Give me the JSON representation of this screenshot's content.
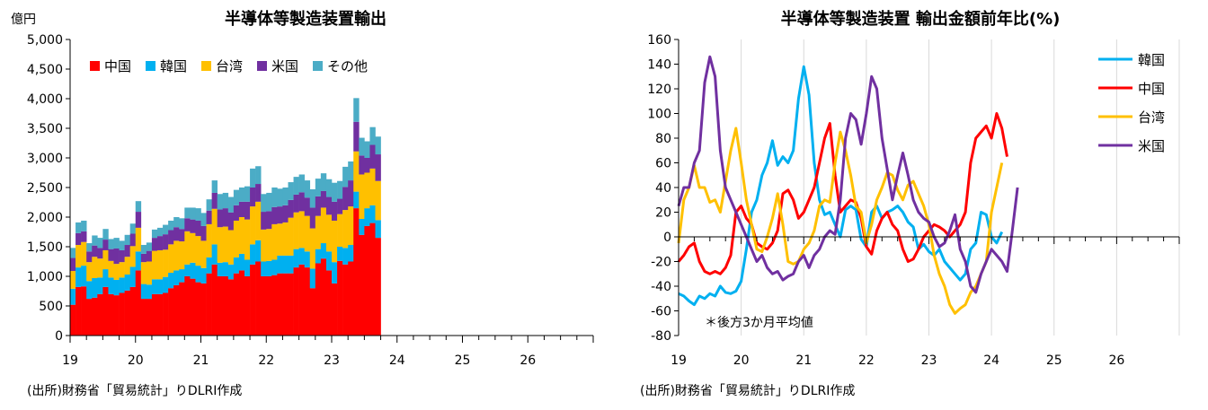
{
  "chart_data": [
    {
      "type": "bar",
      "stacked": true,
      "title": "半導体等製造装置輸出",
      "unit_label": "億円",
      "x_tick_labels": [
        "19",
        "20",
        "21",
        "22",
        "23",
        "24",
        "25",
        "26"
      ],
      "y_ticks": [
        0,
        500,
        1000,
        1500,
        2000,
        2500,
        3000,
        3500,
        4000,
        4500,
        5000
      ],
      "y_tick_labels": [
        "0",
        "500",
        "1,000",
        "1,500",
        "2,000",
        "2,500",
        "3,000",
        "3,500",
        "4,000",
        "4,500",
        "5,000"
      ],
      "ylim": [
        0,
        5000
      ],
      "legend_position": "top-left",
      "source": "(出所)財務省「貿易統計」りDLRI作成",
      "series": [
        {
          "name": "中国",
          "color": "#ff0000",
          "values": [
            520,
            820,
            830,
            620,
            640,
            700,
            820,
            700,
            680,
            720,
            760,
            820,
            1100,
            620,
            620,
            700,
            700,
            720,
            800,
            850,
            900,
            1000,
            960,
            900,
            880,
            1050,
            1200,
            1000,
            1000,
            950,
            1050,
            1100,
            1000,
            1200,
            1250,
            1000,
            1000,
            1020,
            1050,
            1050,
            1050,
            1150,
            1200,
            1150,
            800,
            1220,
            1300,
            1100,
            880,
            1260,
            1200,
            1250,
            2150,
            1700,
            1850,
            1900,
            1650
          ]
        },
        {
          "name": "韓国",
          "color": "#00b0f0",
          "values": [
            270,
            330,
            350,
            300,
            330,
            280,
            300,
            280,
            260,
            260,
            270,
            340,
            320,
            250,
            240,
            250,
            250,
            270,
            260,
            250,
            220,
            200,
            270,
            280,
            260,
            270,
            340,
            230,
            240,
            250,
            270,
            280,
            280,
            340,
            360,
            250,
            260,
            260,
            300,
            300,
            300,
            310,
            280,
            270,
            330,
            240,
            260,
            320,
            360,
            240,
            280,
            280,
            280,
            270,
            300,
            300,
            300
          ]
        },
        {
          "name": "台湾",
          "color": "#ffc000",
          "values": [
            300,
            380,
            400,
            320,
            360,
            320,
            320,
            280,
            270,
            260,
            300,
            350,
            400,
            370,
            390,
            480,
            490,
            460,
            480,
            500,
            470,
            560,
            500,
            500,
            460,
            560,
            600,
            600,
            600,
            580,
            620,
            620,
            680,
            640,
            650,
            540,
            540,
            600,
            540,
            560,
            640,
            620,
            620,
            600,
            680,
            560,
            600,
            620,
            700,
            550,
            640,
            650,
            680,
            750,
            600,
            620,
            660
          ]
        },
        {
          "name": "米国",
          "color": "#7030a0",
          "values": [
            220,
            200,
            180,
            180,
            190,
            180,
            180,
            200,
            260,
            200,
            200,
            210,
            270,
            140,
            180,
            220,
            240,
            260,
            240,
            230,
            210,
            220,
            230,
            260,
            250,
            230,
            270,
            300,
            310,
            300,
            260,
            260,
            300,
            320,
            300,
            300,
            300,
            290,
            290,
            290,
            300,
            300,
            320,
            310,
            350,
            330,
            280,
            300,
            320,
            260,
            390,
            440,
            500,
            320,
            250,
            400,
            450
          ]
        },
        {
          "name": "その他",
          "color": "#4bacc6",
          "values": [
            170,
            180,
            180,
            140,
            170,
            170,
            180,
            170,
            180,
            160,
            170,
            170,
            180,
            150,
            140,
            140,
            140,
            160,
            160,
            170,
            180,
            180,
            200,
            210,
            220,
            190,
            210,
            260,
            260,
            260,
            260,
            240,
            260,
            320,
            300,
            300,
            310,
            330,
            300,
            300,
            300,
            300,
            300,
            290,
            310,
            300,
            300,
            300,
            320,
            300,
            340,
            320,
            400,
            300,
            280,
            300,
            300
          ]
        }
      ]
    },
    {
      "type": "line",
      "title": "半導体等製造装置 輸出金額前年比(%)",
      "x_tick_labels": [
        "19",
        "20",
        "21",
        "22",
        "23",
        "24",
        "25",
        "26"
      ],
      "y_ticks": [
        -80,
        -60,
        -40,
        -20,
        0,
        20,
        40,
        60,
        80,
        100,
        120,
        140,
        160
      ],
      "y_tick_labels": [
        "-80",
        "-60",
        "-40",
        "-20",
        "0",
        "20",
        "40",
        "60",
        "80",
        "100",
        "120",
        "140",
        "160"
      ],
      "ylim": [
        -80,
        160
      ],
      "annotation": "＊後方3か月平均値",
      "legend_position": "top-right",
      "source": "(出所)財務省「貿易統計」りDLRI作成",
      "series": [
        {
          "name": "韓国",
          "color": "#00b0f0",
          "values": [
            -46,
            -48,
            -52,
            -55,
            -48,
            -50,
            -46,
            -48,
            -40,
            -45,
            -46,
            -44,
            -36,
            -10,
            20,
            30,
            50,
            60,
            78,
            58,
            65,
            60,
            70,
            112,
            138,
            115,
            60,
            30,
            18,
            20,
            10,
            0,
            22,
            25,
            22,
            -2,
            -8,
            20,
            25,
            15,
            20,
            22,
            25,
            20,
            12,
            8,
            -10,
            -6,
            -12,
            -15,
            -10,
            -20,
            -25,
            -30,
            -35,
            -30,
            -10,
            -5,
            20,
            18,
            0,
            -5,
            4
          ]
        },
        {
          "name": "中国",
          "color": "#ff0000",
          "values": [
            -20,
            -15,
            -8,
            -5,
            -20,
            -28,
            -30,
            -28,
            -30,
            -25,
            -15,
            20,
            25,
            15,
            10,
            -5,
            -8,
            -10,
            -5,
            5,
            35,
            38,
            30,
            15,
            20,
            30,
            40,
            60,
            80,
            92,
            50,
            20,
            25,
            30,
            28,
            15,
            -8,
            -14,
            5,
            15,
            20,
            10,
            5,
            -10,
            -20,
            -18,
            -10,
            0,
            5,
            10,
            8,
            5,
            0,
            5,
            10,
            20,
            60,
            80,
            85,
            90,
            80,
            100,
            88,
            65
          ]
        },
        {
          "name": "台湾",
          "color": "#ffc000",
          "values": [
            -5,
            30,
            40,
            58,
            40,
            40,
            28,
            30,
            20,
            45,
            70,
            88,
            60,
            30,
            10,
            -10,
            -12,
            0,
            15,
            35,
            10,
            -20,
            -22,
            -20,
            -10,
            -5,
            5,
            25,
            30,
            28,
            60,
            85,
            70,
            50,
            25,
            20,
            -5,
            10,
            30,
            40,
            52,
            50,
            38,
            30,
            42,
            45,
            35,
            25,
            10,
            -15,
            -30,
            -40,
            -55,
            -62,
            -58,
            -55,
            -45,
            -40,
            -30,
            -20,
            20,
            40,
            60
          ]
        },
        {
          "name": "米国",
          "color": "#7030a0",
          "values": [
            25,
            40,
            40,
            60,
            70,
            125,
            146,
            130,
            70,
            40,
            30,
            20,
            10,
            0,
            -10,
            -20,
            -15,
            -25,
            -30,
            -28,
            -35,
            -32,
            -30,
            -20,
            -15,
            -25,
            -15,
            -10,
            0,
            5,
            2,
            30,
            80,
            100,
            95,
            75,
            100,
            130,
            120,
            80,
            55,
            30,
            50,
            68,
            50,
            30,
            20,
            15,
            12,
            0,
            -8,
            -5,
            5,
            18,
            -10,
            -20,
            -40,
            -45,
            -30,
            -20,
            -10,
            -15,
            -20,
            -28,
            5,
            40
          ]
        }
      ]
    }
  ]
}
